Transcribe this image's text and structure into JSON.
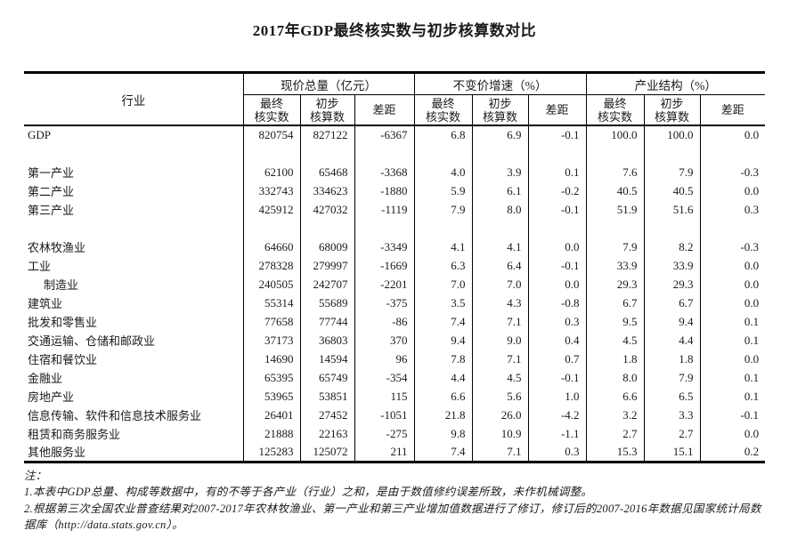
{
  "title": "2017年GDP最终核实数与初步核算数对比",
  "table": {
    "industry_header": "行业",
    "groups": [
      {
        "label": "现价总量（亿元）"
      },
      {
        "label": "不变价增速（%）"
      },
      {
        "label": "产业结构（%）"
      }
    ],
    "sub_headers": [
      {
        "line1": "最终",
        "line2": "核实数"
      },
      {
        "line1": "初步",
        "line2": "核算数"
      },
      {
        "line1": "差距",
        "line2": ""
      }
    ],
    "rows": [
      {
        "name": "GDP",
        "values": [
          "820754",
          "827122",
          "-6367",
          "6.8",
          "6.9",
          "-0.1",
          "100.0",
          "100.0",
          "0.0"
        ]
      },
      {
        "name": "",
        "blank": true
      },
      {
        "name": "第一产业",
        "values": [
          "62100",
          "65468",
          "-3368",
          "4.0",
          "3.9",
          "0.1",
          "7.6",
          "7.9",
          "-0.3"
        ]
      },
      {
        "name": "第二产业",
        "values": [
          "332743",
          "334623",
          "-1880",
          "5.9",
          "6.1",
          "-0.2",
          "40.5",
          "40.5",
          "0.0"
        ]
      },
      {
        "name": "第三产业",
        "values": [
          "425912",
          "427032",
          "-1119",
          "7.9",
          "8.0",
          "-0.1",
          "51.9",
          "51.6",
          "0.3"
        ]
      },
      {
        "name": "",
        "blank": true
      },
      {
        "name": "农林牧渔业",
        "values": [
          "64660",
          "68009",
          "-3349",
          "4.1",
          "4.1",
          "0.0",
          "7.9",
          "8.2",
          "-0.3"
        ]
      },
      {
        "name": "工业",
        "values": [
          "278328",
          "279997",
          "-1669",
          "6.3",
          "6.4",
          "-0.1",
          "33.9",
          "33.9",
          "0.0"
        ]
      },
      {
        "name": "制造业",
        "indent": true,
        "values": [
          "240505",
          "242707",
          "-2201",
          "7.0",
          "7.0",
          "0.0",
          "29.3",
          "29.3",
          "0.0"
        ]
      },
      {
        "name": "建筑业",
        "values": [
          "55314",
          "55689",
          "-375",
          "3.5",
          "4.3",
          "-0.8",
          "6.7",
          "6.7",
          "0.0"
        ]
      },
      {
        "name": "批发和零售业",
        "values": [
          "77658",
          "77744",
          "-86",
          "7.4",
          "7.1",
          "0.3",
          "9.5",
          "9.4",
          "0.1"
        ]
      },
      {
        "name": "交通运输、仓储和邮政业",
        "values": [
          "37173",
          "36803",
          "370",
          "9.4",
          "9.0",
          "0.4",
          "4.5",
          "4.4",
          "0.1"
        ]
      },
      {
        "name": "住宿和餐饮业",
        "values": [
          "14690",
          "14594",
          "96",
          "7.8",
          "7.1",
          "0.7",
          "1.8",
          "1.8",
          "0.0"
        ]
      },
      {
        "name": "金融业",
        "values": [
          "65395",
          "65749",
          "-354",
          "4.4",
          "4.5",
          "-0.1",
          "8.0",
          "7.9",
          "0.1"
        ]
      },
      {
        "name": "房地产业",
        "values": [
          "53965",
          "53851",
          "115",
          "6.6",
          "5.6",
          "1.0",
          "6.6",
          "6.5",
          "0.1"
        ]
      },
      {
        "name": "信息传输、软件和信息技术服务业",
        "values": [
          "26401",
          "27452",
          "-1051",
          "21.8",
          "26.0",
          "-4.2",
          "3.2",
          "3.3",
          "-0.1"
        ]
      },
      {
        "name": "租赁和商务服务业",
        "values": [
          "21888",
          "22163",
          "-275",
          "9.8",
          "10.9",
          "-1.1",
          "2.7",
          "2.7",
          "0.0"
        ]
      },
      {
        "name": "其他服务业",
        "values": [
          "125283",
          "125072",
          "211",
          "7.4",
          "7.1",
          "0.3",
          "15.3",
          "15.1",
          "0.2"
        ]
      }
    ]
  },
  "notes": {
    "label": "注：",
    "note1": "1.本表中GDP总量、构成等数据中，有的不等于各产业（行业）之和，是由于数值修约误差所致，未作机械调整。",
    "note2": "2.根据第三次全国农业普查结果对2007-2017年农林牧渔业、第一产业和第三产业增加值数据进行了修订，修订后的2007-2016年数据见国家统计局数据库（http://data.stats.gov.cn）。"
  }
}
